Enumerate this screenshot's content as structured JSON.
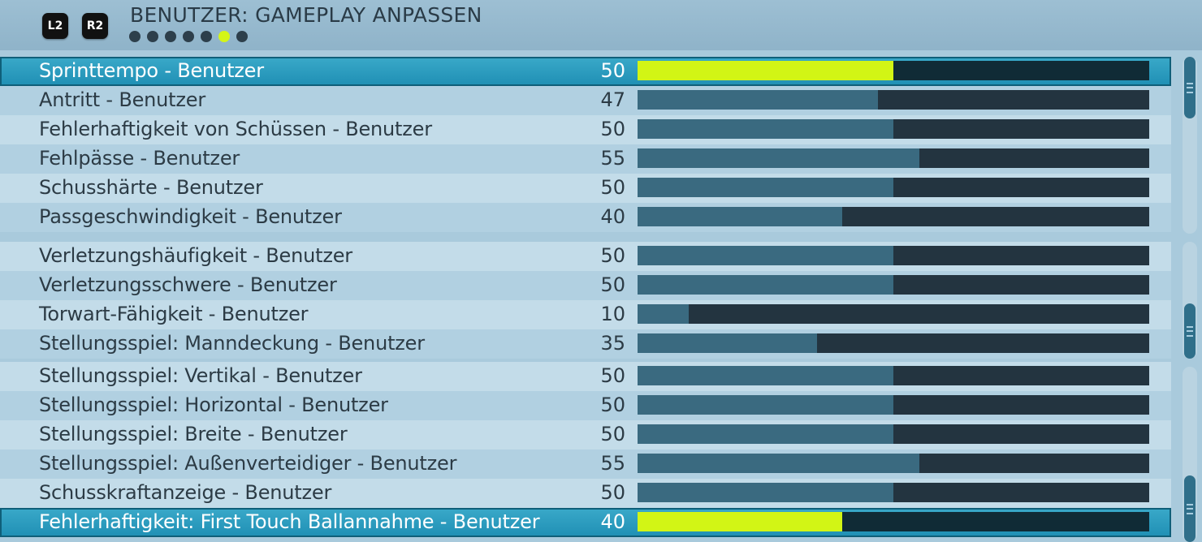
{
  "header": {
    "title": "BENUTZER: GAMEPLAY ANPASSEN",
    "l2_label": "L2",
    "r2_label": "R2",
    "page_count": 7,
    "active_page": 6,
    "accent_color": "#d4f517"
  },
  "groups": [
    {
      "rows": [
        {
          "label": "Sprinttempo - Benutzer",
          "value": 50,
          "selected": true
        },
        {
          "label": "Antritt - Benutzer",
          "value": 47
        },
        {
          "label": "Fehlerhaftigkeit von Schüssen - Benutzer",
          "value": 50
        },
        {
          "label": "Fehlpässe - Benutzer",
          "value": 55
        },
        {
          "label": "Schusshärte - Benutzer",
          "value": 50
        },
        {
          "label": "Passgeschwindigkeit - Benutzer",
          "value": 40
        }
      ]
    },
    {
      "rows": [
        {
          "label": "Verletzungshäufigkeit - Benutzer",
          "value": 50
        },
        {
          "label": "Verletzungsschwere - Benutzer",
          "value": 50
        },
        {
          "label": "Torwart-Fähigkeit - Benutzer",
          "value": 10
        },
        {
          "label": "Stellungsspiel: Manndeckung - Benutzer",
          "value": 35
        }
      ]
    },
    {
      "rows": [
        {
          "label": "Stellungsspiel: Vertikal - Benutzer",
          "value": 50
        },
        {
          "label": "Stellungsspiel: Horizontal - Benutzer",
          "value": 50
        },
        {
          "label": "Stellungsspiel: Breite - Benutzer",
          "value": 50
        },
        {
          "label": "Stellungsspiel: Außenverteidiger - Benutzer",
          "value": 55
        },
        {
          "label": "Schusskraftanzeige - Benutzer",
          "value": 50
        },
        {
          "label": "Fehlerhaftigkeit: First Touch Ballannahme - Benutzer",
          "value": 40,
          "selected": true
        }
      ]
    }
  ],
  "slider_max": 100
}
